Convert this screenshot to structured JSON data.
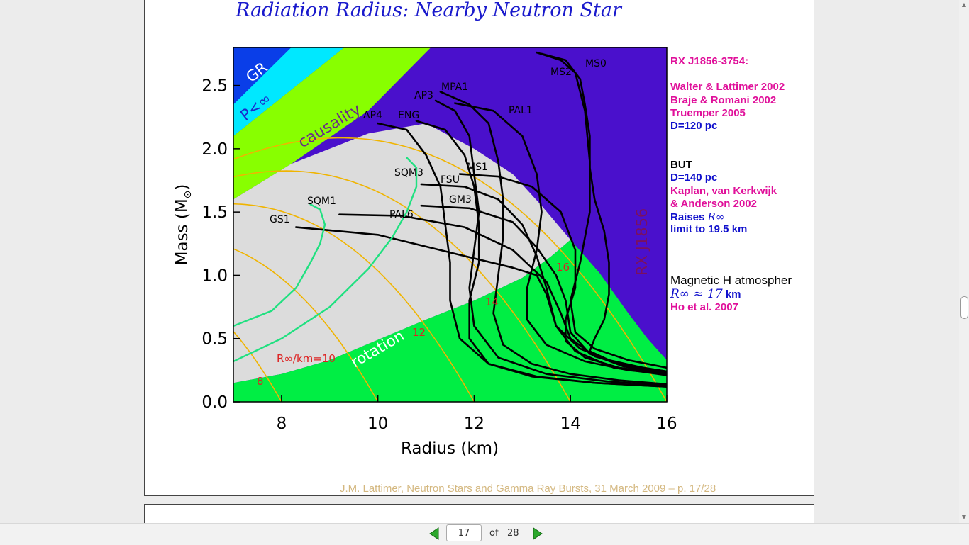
{
  "slide": {
    "title": "Radiation Radius: Nearby Neutron Star",
    "footer": "J.M. Lattimer, Neutron Stars and Gamma Ray Bursts, 31 March 2009 – p. 17/28"
  },
  "annotations": {
    "source": "RX J1856-3754:",
    "ref1": "Walter & Lattimer 2002",
    "ref2": "Braje & Romani 2002",
    "ref3": "Truemper 2005",
    "dist1": "D=120 pc",
    "but": "BUT",
    "dist2": "D=140 pc",
    "ref4a": "Kaplan, van Kerkwijk",
    "ref4b": "& Anderson 2002",
    "raises_a": "Raises",
    "raises_sym": "R∞",
    "raises_b": "limit to 19.5 km",
    "mag_title": "Magnetic H atmospher",
    "mag_sym": "R∞ ≈ 17",
    "mag_unit": "km",
    "mag_ref": "Ho et al. 2007"
  },
  "viewer": {
    "current_page": "17",
    "of_label": "of",
    "total_pages": "28"
  },
  "chart_data": {
    "type": "line",
    "xlabel": "Radius (km)",
    "ylabel": "Mass (M",
    "ylabel_suffix": ")",
    "xlim": [
      7,
      16
    ],
    "ylim": [
      0,
      2.8
    ],
    "xticks": [
      "8",
      "10",
      "12",
      "14",
      "16"
    ],
    "yticks": [
      "0.0",
      "0.5",
      "1.0",
      "1.5",
      "2.0",
      "2.5"
    ],
    "regions": [
      {
        "label": "GR",
        "color": "#0a3ee8"
      },
      {
        "label": "P<∞",
        "color": "#00e8ff"
      },
      {
        "label": "causality",
        "color": "#88ff00"
      },
      {
        "label": "rotation",
        "color": "#00ee44"
      },
      {
        "label": "RX J1856",
        "color": "#4a10cc"
      }
    ],
    "gray_color": "#dcdcdc",
    "contour_labels": [
      "R∞/km=10",
      "8",
      "12",
      "14",
      "16"
    ],
    "contour_values": [
      8,
      10,
      12,
      14,
      16
    ],
    "eos_labels": [
      "MS0",
      "MS2",
      "MPA1",
      "AP3",
      "PAL1",
      "AP4",
      "ENG",
      "MS1",
      "SQM3",
      "FSU",
      "GM3",
      "SQM1",
      "PAL6",
      "GS1"
    ],
    "series": [
      {
        "name": "MS0",
        "kind": "normal",
        "x": [
          13.3,
          13.8,
          14.1,
          14.3,
          14.4,
          14.4,
          14.2,
          14.0,
          14.1,
          14.5,
          15.2,
          16.0
        ],
        "y": [
          2.76,
          2.7,
          2.6,
          2.3,
          1.9,
          1.5,
          1.1,
          0.8,
          0.55,
          0.42,
          0.33,
          0.27
        ]
      },
      {
        "name": "MS2",
        "kind": "normal",
        "x": [
          13.4,
          13.9,
          14.2,
          14.3,
          14.4,
          14.4,
          14.5,
          14.7,
          14.8,
          14.8,
          14.7,
          14.5,
          14.4,
          14.8,
          15.5,
          16.0
        ],
        "y": [
          2.75,
          2.7,
          2.55,
          2.35,
          2.1,
          1.85,
          1.6,
          1.35,
          1.1,
          0.85,
          0.65,
          0.5,
          0.4,
          0.33,
          0.27,
          0.24
        ]
      },
      {
        "name": "MPA1",
        "kind": "normal",
        "x": [
          11.3,
          11.9,
          12.3,
          12.5,
          12.6,
          12.6,
          12.5,
          12.4,
          12.6,
          13.2,
          14.0,
          15.0,
          16.0
        ],
        "y": [
          2.45,
          2.35,
          2.2,
          1.9,
          1.6,
          1.3,
          1.0,
          0.7,
          0.45,
          0.3,
          0.22,
          0.17,
          0.14
        ]
      },
      {
        "name": "AP3",
        "kind": "normal",
        "x": [
          11.2,
          11.6,
          11.9,
          12.0,
          12.1,
          12.0,
          11.9,
          12.0,
          12.5,
          13.5,
          14.8,
          16.0
        ],
        "y": [
          2.38,
          2.3,
          2.1,
          1.8,
          1.5,
          1.2,
          0.9,
          0.6,
          0.35,
          0.22,
          0.16,
          0.13
        ]
      },
      {
        "name": "PAL1",
        "kind": "normal",
        "x": [
          11.6,
          12.4,
          13.0,
          13.3,
          13.4,
          13.3,
          13.1,
          13.1,
          13.5,
          14.3,
          15.2,
          16.0
        ],
        "y": [
          2.36,
          2.3,
          2.1,
          1.8,
          1.5,
          1.2,
          0.9,
          0.65,
          0.45,
          0.32,
          0.25,
          0.22
        ]
      },
      {
        "name": "AP4",
        "kind": "normal",
        "x": [
          10.0,
          10.6,
          11.0,
          11.3,
          11.4,
          11.5,
          11.5,
          11.7,
          12.3,
          13.3,
          14.5,
          16.0
        ],
        "y": [
          2.2,
          2.15,
          1.95,
          1.7,
          1.4,
          1.1,
          0.8,
          0.5,
          0.3,
          0.2,
          0.15,
          0.12
        ]
      },
      {
        "name": "ENG",
        "kind": "normal",
        "x": [
          10.8,
          11.4,
          11.8,
          12.0,
          12.1,
          12.1,
          11.9,
          11.9,
          12.3,
          13.2,
          14.5,
          16.0
        ],
        "y": [
          2.22,
          2.15,
          1.95,
          1.7,
          1.4,
          1.1,
          0.8,
          0.5,
          0.3,
          0.2,
          0.15,
          0.12
        ]
      },
      {
        "name": "MS1",
        "kind": "normal",
        "x": [
          11.7,
          12.5,
          13.2,
          13.8,
          14.1,
          14.1,
          13.9,
          13.9,
          14.3,
          15.0,
          16.0
        ],
        "y": [
          1.8,
          1.78,
          1.7,
          1.5,
          1.2,
          0.9,
          0.65,
          0.48,
          0.35,
          0.27,
          0.22
        ]
      },
      {
        "name": "FSU",
        "kind": "normal",
        "x": [
          10.9,
          11.8,
          12.5,
          13.0,
          13.3,
          13.5,
          13.7,
          14.1,
          14.9,
          16.0
        ],
        "y": [
          1.72,
          1.7,
          1.6,
          1.4,
          1.15,
          0.9,
          0.6,
          0.4,
          0.27,
          0.21
        ]
      },
      {
        "name": "GM3",
        "kind": "normal",
        "x": [
          10.9,
          11.9,
          12.8,
          13.3,
          13.7,
          13.9,
          14.0,
          14.4,
          15.1,
          16.0
        ],
        "y": [
          1.55,
          1.53,
          1.42,
          1.22,
          1.0,
          0.8,
          0.55,
          0.38,
          0.28,
          0.22
        ]
      },
      {
        "name": "PAL6",
        "kind": "normal",
        "x": [
          9.2,
          10.5,
          11.8,
          12.8,
          13.5,
          13.8,
          14.0,
          14.5,
          15.2,
          16.0
        ],
        "y": [
          1.48,
          1.47,
          1.38,
          1.2,
          0.95,
          0.7,
          0.5,
          0.36,
          0.28,
          0.23
        ]
      },
      {
        "name": "GS1",
        "kind": "normal",
        "x": [
          8.3,
          10.0,
          11.5,
          12.8,
          13.3,
          13.5,
          13.7,
          14.2,
          15.0,
          16.0
        ],
        "y": [
          1.38,
          1.32,
          1.18,
          1.06,
          1.0,
          0.85,
          0.6,
          0.42,
          0.3,
          0.24
        ]
      },
      {
        "name": "SQM1",
        "kind": "strange",
        "x": [
          8.6,
          8.8,
          8.9,
          8.8,
          8.6,
          8.3,
          7.8,
          7.0
        ],
        "y": [
          1.56,
          1.52,
          1.4,
          1.25,
          1.1,
          0.9,
          0.72,
          0.6
        ]
      },
      {
        "name": "SQM3",
        "kind": "strange",
        "x": [
          10.6,
          10.8,
          10.8,
          10.6,
          10.3,
          9.8,
          9.0,
          8.0,
          7.0
        ],
        "y": [
          1.93,
          1.85,
          1.7,
          1.5,
          1.3,
          1.05,
          0.75,
          0.5,
          0.32
        ]
      }
    ]
  }
}
